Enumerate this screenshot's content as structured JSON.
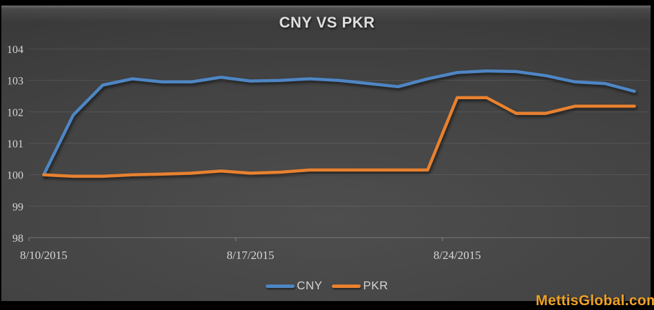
{
  "watermark": "MettisGlobal.com",
  "colors": {
    "background_dark": "#3a3a3a",
    "background_light": "#4e4e4e",
    "cny_blue": "#4e86c4",
    "pkr_orange": "#e8812f",
    "watermark_orange": "#f0a227",
    "text_light": "#d6d6d6"
  },
  "legend": {
    "items": [
      {
        "label": "CNY",
        "color": "#4e86c4"
      },
      {
        "label": "PKR",
        "color": "#e8812f"
      }
    ]
  },
  "chart_data": {
    "type": "line",
    "title": "CNY VS PKR",
    "xlabel": "",
    "ylabel": "",
    "x": [
      "8/10/2015",
      "8/11/2015",
      "8/12/2015",
      "8/13/2015",
      "8/14/2015",
      "8/15/2015",
      "8/16/2015",
      "8/17/2015",
      "8/18/2015",
      "8/19/2015",
      "8/20/2015",
      "8/21/2015",
      "8/22/2015",
      "8/23/2015",
      "8/24/2015",
      "8/25/2015",
      "8/26/2015",
      "8/27/2015",
      "8/28/2015",
      "8/29/2015",
      "8/30/2015"
    ],
    "x_tick_labels": [
      "8/10/2015",
      "8/17/2015",
      "8/24/2015"
    ],
    "x_tick_indices": [
      0,
      7,
      14
    ],
    "ylim": [
      98,
      104
    ],
    "y_ticks": [
      98,
      99,
      100,
      101,
      102,
      103,
      104
    ],
    "grid": "horizontal",
    "legend_position": "bottom",
    "series": [
      {
        "name": "CNY",
        "color": "#4e86c4",
        "values": [
          100.0,
          101.9,
          102.85,
          103.05,
          102.95,
          102.95,
          103.1,
          102.98,
          103.0,
          103.05,
          103.0,
          102.9,
          102.8,
          103.05,
          103.25,
          103.3,
          103.28,
          103.15,
          102.95,
          102.9,
          102.65
        ]
      },
      {
        "name": "PKR",
        "color": "#e8812f",
        "values": [
          100.0,
          99.95,
          99.95,
          100.0,
          100.02,
          100.05,
          100.12,
          100.05,
          100.08,
          100.15,
          100.15,
          100.15,
          100.15,
          100.15,
          102.45,
          102.45,
          101.95,
          101.95,
          102.18,
          102.18,
          102.18
        ]
      }
    ]
  }
}
